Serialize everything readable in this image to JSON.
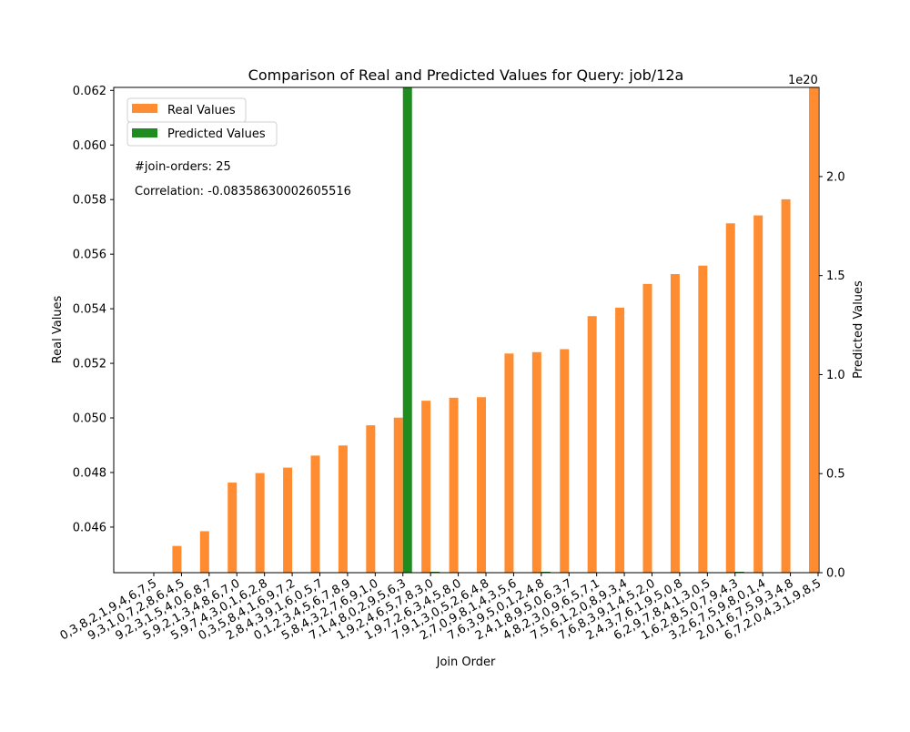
{
  "chart_data": {
    "type": "bar",
    "title": "Comparison of Real and Predicted Values for Query: job/12a",
    "xlabel": "Join Order",
    "ylabel": "Real Values",
    "y2label": "Predicted Values",
    "y2_multiplier": "1e20",
    "annotations": [
      "#join-orders: 25",
      "Correlation: -0.08358630002605516"
    ],
    "legend_position": "top-left",
    "grid": false,
    "ylim": [
      0.04433,
      0.06211
    ],
    "y2lim": [
      0,
      2.45
    ],
    "yticks": [
      "0.046",
      "0.048",
      "0.050",
      "0.052",
      "0.054",
      "0.056",
      "0.058",
      "0.060",
      "0.062"
    ],
    "y2ticks": [
      "0.0",
      "0.5",
      "1.0",
      "1.5",
      "2.0"
    ],
    "categories": [
      "0,3,8,2,1,9,4,6,7,5",
      "9,3,1,0,7,2,8,6,4,5",
      "9,2,3,1,5,4,0,6,8,7",
      "5,9,2,1,3,4,8,6,7,0",
      "5,9,7,4,3,0,1,6,2,8",
      "0,3,5,8,4,1,6,9,7,2",
      "2,8,4,3,9,1,6,0,5,7",
      "0,1,2,3,4,5,6,7,8,9",
      "5,8,4,3,2,7,6,9,1,0",
      "7,1,4,8,0,2,9,5,6,3",
      "1,9,2,4,6,5,7,8,3,0",
      "1,9,7,2,6,3,4,5,8,0",
      "7,9,1,3,0,5,2,6,4,8",
      "2,7,0,9,8,1,4,3,5,6",
      "7,6,3,9,5,0,1,2,4,8",
      "2,4,1,8,9,5,0,6,3,7",
      "4,8,2,3,0,9,6,5,7,1",
      "7,5,6,1,2,0,8,9,3,4",
      "7,6,8,3,9,1,4,5,2,0",
      "2,4,3,7,6,1,9,5,0,8",
      "6,2,9,7,8,4,1,3,0,5",
      "1,6,2,8,5,0,7,9,4,3",
      "3,2,6,7,5,9,8,0,1,4",
      "2,0,1,6,7,5,9,3,4,8",
      "6,7,2,0,4,3,1,9,8,5"
    ],
    "series": [
      {
        "name": "Real Values",
        "axis": "left",
        "color": "#ff8c30",
        "values": [
          0.0443,
          0.04531,
          0.04585,
          0.04763,
          0.04798,
          0.04818,
          0.04862,
          0.04899,
          0.04973,
          0.05001,
          0.05063,
          0.05074,
          0.05076,
          0.05236,
          0.05241,
          0.05252,
          0.05373,
          0.05404,
          0.05491,
          0.05527,
          0.05558,
          0.05713,
          0.05742,
          0.05801,
          0.0621
        ]
      },
      {
        "name": "Predicted Values",
        "axis": "right",
        "color": "#1e8c1e",
        "values": [
          0,
          0,
          0,
          0,
          0,
          0,
          0,
          0,
          0,
          2.46,
          0.003,
          0,
          0,
          0,
          0.003,
          0,
          0,
          0,
          0,
          0,
          0,
          0.003,
          0,
          0,
          0
        ]
      }
    ]
  }
}
